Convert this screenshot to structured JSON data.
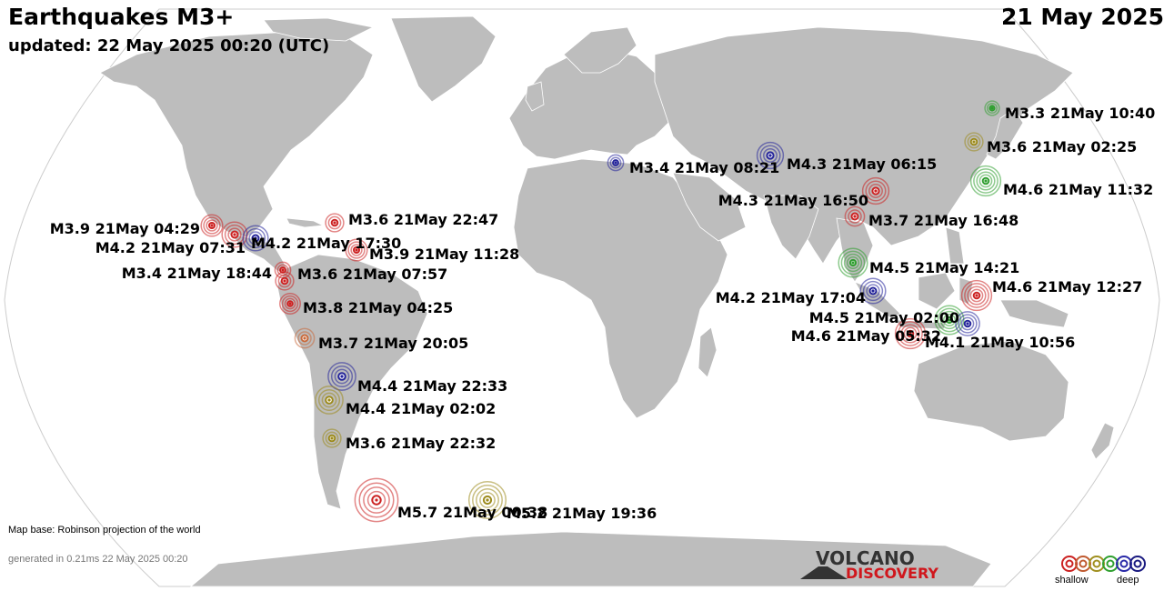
{
  "header": {
    "title": "Earthquakes M3+",
    "date": "21 May 2025",
    "updated": "updated: 22 May 2025 00:20 (UTC)"
  },
  "footer": {
    "map_base": "Map base: Robinson projection of the world",
    "generated": "generated in 0.21ms 22 May 2025 00:20"
  },
  "logo": {
    "volcano": "VOLCANO",
    "discovery": "DISCOVERY"
  },
  "legend": {
    "shallow": "shallow",
    "deep": "deep",
    "depth_colors": [
      "#cc2222",
      "#c05a30",
      "#a09020",
      "#30a030",
      "#2a2aa8",
      "#1a1a80"
    ]
  },
  "colors": {
    "ocean": "#ffffff",
    "land": "#bdbdbd",
    "border": "#ffffff",
    "depth_red": "#cc2222",
    "depth_orange": "#c86a3c",
    "depth_yellow": "#9c8a1c",
    "depth_green": "#2f9e2f",
    "depth_blue": "#24249a"
  },
  "quakes": [
    {
      "label": "M3.3 21May 10:40",
      "depth": "green",
      "mag": 3.3
    },
    {
      "label": "M3.6 21May 02:25",
      "depth": "yellow",
      "mag": 3.6
    },
    {
      "label": "M4.3 21May 06:15",
      "depth": "blue",
      "mag": 4.3
    },
    {
      "label": "M3.4 21May 08:21",
      "depth": "blue",
      "mag": 3.4
    },
    {
      "label": "M4.6 21May 11:32",
      "depth": "green",
      "mag": 4.6
    },
    {
      "label": "M4.3 21May 16:50",
      "depth": "red",
      "mag": 4.3
    },
    {
      "label": "M3.7 21May 16:48",
      "depth": "red",
      "mag": 3.7
    },
    {
      "label": "M3.9 21May 04:29",
      "depth": "red",
      "mag": 3.9
    },
    {
      "label": "M3.6 21May 22:47",
      "depth": "red",
      "mag": 3.6
    },
    {
      "label": "M4.2 21May 07:31",
      "depth": "red",
      "mag": 4.2
    },
    {
      "label": "M4.2 21May 17:30",
      "depth": "blue",
      "mag": 4.2
    },
    {
      "label": "M3.9 21May 11:28",
      "depth": "red",
      "mag": 3.9
    },
    {
      "label": "M3.4 21May 18:44",
      "depth": "red",
      "mag": 3.4
    },
    {
      "label": "M3.6 21May 07:57",
      "depth": "red",
      "mag": 3.6
    },
    {
      "label": "M4.5 21May 14:21",
      "depth": "green",
      "mag": 4.5
    },
    {
      "label": "M4.6 21May 12:27",
      "depth": "red",
      "mag": 4.6
    },
    {
      "label": "M4.2 21May 17:04",
      "depth": "blue",
      "mag": 4.2
    },
    {
      "label": "M3.8 21May 04:25",
      "depth": "red",
      "mag": 3.8
    },
    {
      "label": "M4.5 21May 02:00",
      "depth": "green",
      "mag": 4.5
    },
    {
      "label": "M4.6 21May 05:32",
      "depth": "red",
      "mag": 4.6
    },
    {
      "label": "M4.1 21May 10:56",
      "depth": "blue",
      "mag": 4.1
    },
    {
      "label": "M3.7 21May 20:05",
      "depth": "orange",
      "mag": 3.7
    },
    {
      "label": "M4.4 21May 22:33",
      "depth": "blue",
      "mag": 4.4
    },
    {
      "label": "M4.4 21May 02:02",
      "depth": "yellow",
      "mag": 4.4
    },
    {
      "label": "M3.6 21May 22:32",
      "depth": "yellow",
      "mag": 3.6
    },
    {
      "label": "M5.7 21May 00:38",
      "depth": "red",
      "mag": 5.7
    },
    {
      "label": "M5.2 21May 19:36",
      "depth": "yellow",
      "mag": 5.2
    }
  ]
}
